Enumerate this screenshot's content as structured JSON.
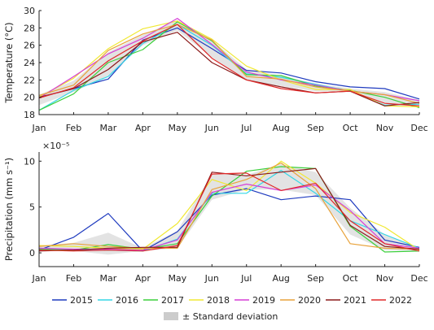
{
  "chart_data": [
    {
      "type": "line",
      "title": "",
      "xlabel": "",
      "ylabel": "Temperature (°C)",
      "ylim": [
        18,
        30
      ],
      "yticks": [
        "18",
        "20",
        "22",
        "24",
        "26",
        "28",
        "30"
      ],
      "grid": false,
      "categories": [
        "Jan",
        "Feb",
        "Mar",
        "Apr",
        "May",
        "Jun",
        "Jul",
        "Aug",
        "Sep",
        "Oct",
        "Nov",
        "Dec"
      ],
      "series": [
        {
          "name": "2015",
          "color": "#1f3bbf",
          "values": [
            20.0,
            21.0,
            22.1,
            26.6,
            28.0,
            25.6,
            23.1,
            22.8,
            21.8,
            21.2,
            21.0,
            19.8
          ]
        },
        {
          "name": "2016",
          "color": "#33d6e6",
          "values": [
            18.5,
            20.8,
            22.4,
            26.2,
            28.4,
            26.0,
            22.7,
            22.3,
            21.5,
            20.7,
            19.1,
            19.2
          ]
        },
        {
          "name": "2017",
          "color": "#3ccf3c",
          "values": [
            18.5,
            20.4,
            24.0,
            25.5,
            28.7,
            26.5,
            22.6,
            22.5,
            21.3,
            20.8,
            20.0,
            18.8
          ]
        },
        {
          "name": "2018",
          "color": "#f0e832",
          "values": [
            20.0,
            22.2,
            25.6,
            27.9,
            28.8,
            26.7,
            23.6,
            22.0,
            20.9,
            20.9,
            19.0,
            18.9
          ]
        },
        {
          "name": "2019",
          "color": "#d63fd6",
          "values": [
            19.9,
            22.4,
            25.0,
            26.8,
            29.1,
            26.1,
            22.9,
            22.0,
            21.4,
            20.7,
            20.3,
            19.6
          ]
        },
        {
          "name": "2020",
          "color": "#e8a23a",
          "values": [
            20.2,
            21.4,
            25.4,
            27.3,
            28.4,
            26.6,
            22.4,
            22.1,
            21.2,
            20.7,
            20.3,
            19.3
          ]
        },
        {
          "name": "2021",
          "color": "#8b1a1a",
          "values": [
            20.0,
            21.0,
            23.2,
            26.4,
            27.5,
            24.0,
            22.0,
            21.2,
            20.5,
            20.7,
            19.0,
            19.4
          ]
        },
        {
          "name": "2022",
          "color": "#e02828",
          "values": [
            19.9,
            21.1,
            24.2,
            26.5,
            28.4,
            24.5,
            22.0,
            21.0,
            20.5,
            20.7,
            19.3,
            19.0
          ]
        }
      ],
      "std_band": {
        "label": "± Standard deviation",
        "color": "#cccccc",
        "lower": [
          19.1,
          20.6,
          22.5,
          26.0,
          27.7,
          24.6,
          22.0,
          21.3,
          20.7,
          20.6,
          19.4,
          18.9
        ],
        "upper": [
          20.3,
          21.9,
          25.2,
          27.2,
          28.9,
          26.6,
          23.2,
          22.5,
          21.6,
          21.0,
          20.6,
          19.7
        ]
      }
    },
    {
      "type": "line",
      "title": "",
      "xlabel": "",
      "ylabel": "Precipitation (mm s⁻¹)",
      "scale_label": "×10⁻⁵",
      "ylim": [
        -1.5,
        11
      ],
      "yticks": [
        "0",
        "5",
        "10"
      ],
      "grid": false,
      "categories": [
        "Jan",
        "Feb",
        "Mar",
        "Apr",
        "May",
        "Jun",
        "Jul",
        "Aug",
        "Sep",
        "Oct",
        "Nov",
        "Dec"
      ],
      "series": [
        {
          "name": "2015",
          "color": "#1f3bbf",
          "values": [
            0.3,
            1.7,
            4.3,
            0.2,
            2.3,
            6.3,
            7.0,
            5.8,
            6.2,
            5.8,
            1.4,
            0.6
          ]
        },
        {
          "name": "2016",
          "color": "#33d6e6",
          "values": [
            0.5,
            0.3,
            0.3,
            0.2,
            1.5,
            6.5,
            6.5,
            9.0,
            6.5,
            3.5,
            2.0,
            0.5
          ]
        },
        {
          "name": "2017",
          "color": "#3ccf3c",
          "values": [
            0.4,
            0.3,
            0.9,
            0.4,
            1.0,
            6.2,
            8.9,
            9.4,
            9.2,
            2.9,
            0.1,
            0.2
          ]
        },
        {
          "name": "2018",
          "color": "#f0e832",
          "values": [
            0.8,
            0.7,
            0.5,
            0.4,
            3.2,
            8.0,
            6.8,
            10.0,
            7.6,
            4.4,
            2.8,
            0.3
          ]
        },
        {
          "name": "2019",
          "color": "#d63fd6",
          "values": [
            0.5,
            0.4,
            0.4,
            0.3,
            1.4,
            6.6,
            7.5,
            6.8,
            7.4,
            4.6,
            1.0,
            0.5
          ]
        },
        {
          "name": "2020",
          "color": "#e8a23a",
          "values": [
            0.7,
            1.0,
            0.7,
            0.5,
            0.5,
            6.9,
            8.0,
            9.8,
            7.0,
            1.0,
            0.5,
            0.4
          ]
        },
        {
          "name": "2021",
          "color": "#8b1a1a",
          "values": [
            0.2,
            0.3,
            0.5,
            0.6,
            0.6,
            8.8,
            8.4,
            8.8,
            9.2,
            3.0,
            0.7,
            0.4
          ]
        },
        {
          "name": "2022",
          "color": "#e02828",
          "values": [
            0.3,
            0.2,
            0.3,
            0.2,
            0.8,
            8.6,
            8.7,
            6.8,
            7.6,
            3.5,
            1.0,
            0.2
          ]
        }
      ],
      "std_band": {
        "label": "± Standard deviation",
        "color": "#cccccc",
        "lower": [
          0.3,
          0.2,
          -0.2,
          0.2,
          0.5,
          5.8,
          6.9,
          6.9,
          6.3,
          2.0,
          0.3,
          0.2
        ],
        "upper": [
          0.8,
          1.1,
          2.2,
          0.5,
          2.4,
          8.6,
          8.5,
          9.7,
          8.8,
          4.9,
          2.0,
          0.5
        ]
      }
    }
  ],
  "legend": {
    "entries": [
      "2015",
      "2016",
      "2017",
      "2018",
      "2019",
      "2020",
      "2021",
      "2022"
    ],
    "std_label": "± Standard deviation"
  }
}
